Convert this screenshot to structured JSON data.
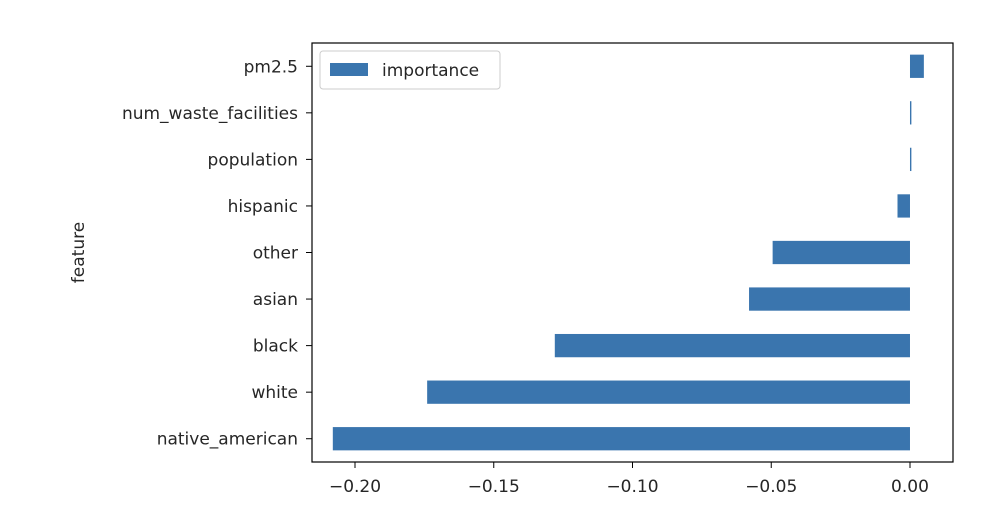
{
  "chart_data": {
    "type": "bar",
    "orientation": "horizontal",
    "categories": [
      "pm2.5",
      "num_waste_facilities",
      "population",
      "hispanic",
      "other",
      "asian",
      "black",
      "white",
      "native_american"
    ],
    "series": [
      {
        "name": "importance",
        "color": "#3a75ae",
        "values": [
          0.005,
          0.0005,
          0.0005,
          -0.0045,
          -0.0495,
          -0.058,
          -0.128,
          -0.174,
          -0.208
        ]
      }
    ],
    "title": "",
    "xlabel": "",
    "ylabel": "feature",
    "xlim": [
      -0.2155,
      0.0155
    ],
    "xticks": [
      -0.2,
      -0.15,
      -0.1,
      -0.05,
      0.0
    ],
    "xtick_labels": [
      "−0.20",
      "−0.15",
      "−0.10",
      "−0.05",
      "0.00"
    ],
    "legend": {
      "position": "upper-left",
      "labels": [
        "importance"
      ]
    },
    "grid": false
  }
}
